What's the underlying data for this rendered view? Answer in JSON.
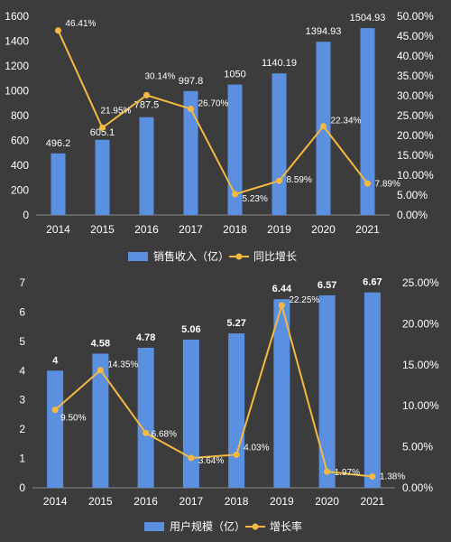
{
  "colors": {
    "background": "#3c3c3c",
    "bar": "#5b8fe0",
    "line": "#f5b942",
    "axis": "#8a8a8a",
    "grid": "#4a4a4a",
    "text": "#ffffff"
  },
  "chart_data": [
    {
      "type": "bar",
      "categories": [
        "2014",
        "2015",
        "2016",
        "2017",
        "2018",
        "2019",
        "2020",
        "2021"
      ],
      "series": [
        {
          "name": "销售收入（亿）",
          "type": "bar",
          "axis": "left",
          "values": [
            496.2,
            605.1,
            787.5,
            997.8,
            1050,
            1140.19,
            1394.93,
            1504.93
          ],
          "labels": [
            "496.2",
            "605.1",
            "787.5",
            "997.8",
            "1050",
            "1140.19",
            "1394.93",
            "1504.93"
          ]
        },
        {
          "name": "同比增长",
          "type": "line",
          "axis": "right",
          "values": [
            46.41,
            21.95,
            30.14,
            26.7,
            5.23,
            8.59,
            22.34,
            7.89
          ],
          "labels": [
            "46.41%",
            "21.95%",
            "30.14%",
            "26.70%",
            "5.23%",
            "8.59%",
            "22.34%",
            "7.89%"
          ]
        }
      ],
      "left_axis": {
        "min": 0,
        "max": 1600,
        "ticks": [
          "0",
          "200",
          "400",
          "600",
          "800",
          "1000",
          "1200",
          "1400",
          "1600"
        ]
      },
      "right_axis": {
        "min": 0,
        "max": 50,
        "ticks": [
          "0.00%",
          "5.00%",
          "10.00%",
          "15.00%",
          "20.00%",
          "25.00%",
          "30.00%",
          "35.00%",
          "40.00%",
          "45.00%",
          "50.00%"
        ]
      },
      "legend": "bottom",
      "grid": false
    },
    {
      "type": "bar",
      "categories": [
        "2014",
        "2015",
        "2016",
        "2017",
        "2018",
        "2019",
        "2020",
        "2021"
      ],
      "series": [
        {
          "name": "用户规模（亿）",
          "type": "bar",
          "axis": "left",
          "values": [
            4,
            4.58,
            4.78,
            5.06,
            5.27,
            6.44,
            6.57,
            6.67
          ],
          "labels": [
            "4",
            "4.58",
            "4.78",
            "5.06",
            "5.27",
            "6.44",
            "6.57",
            "6.67"
          ]
        },
        {
          "name": "增长率",
          "type": "line",
          "axis": "right",
          "values": [
            9.5,
            14.35,
            6.68,
            3.64,
            4.03,
            22.25,
            1.97,
            1.38
          ],
          "labels": [
            "9.50%",
            "14.35%",
            "6.68%",
            "3.64%",
            "4.03%",
            "22.25%",
            "1.97%",
            "1.38%"
          ]
        }
      ],
      "left_axis": {
        "min": 0,
        "max": 7,
        "ticks": [
          "0",
          "1",
          "2",
          "3",
          "4",
          "5",
          "6",
          "7"
        ]
      },
      "right_axis": {
        "min": 0,
        "max": 25,
        "ticks": [
          "0.00%",
          "5.00%",
          "10.00%",
          "15.00%",
          "20.00%",
          "25.00%"
        ]
      },
      "legend": "bottom",
      "grid": false
    }
  ]
}
